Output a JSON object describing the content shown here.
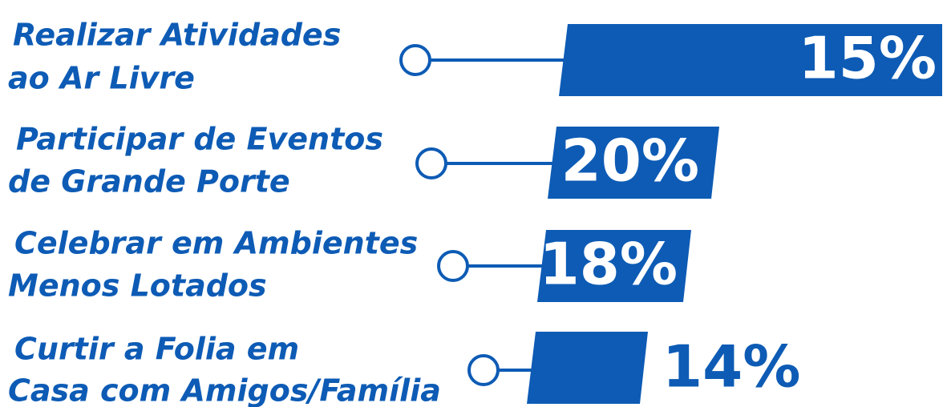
{
  "items": [
    {
      "label": [
        "Realizar Atividades",
        "ao Ar Livre"
      ],
      "value": "15%"
    },
    {
      "label": [
        "Participar de Eventos",
        "de Grande Porte"
      ],
      "value": "20%"
    },
    {
      "label": [
        "Celebrar em Ambientes",
        "Menos Lotados"
      ],
      "value": "18%"
    },
    {
      "label": [
        "Curtir a Folia em",
        "Casa com Amigos/Família"
      ],
      "value": "14%"
    }
  ]
}
